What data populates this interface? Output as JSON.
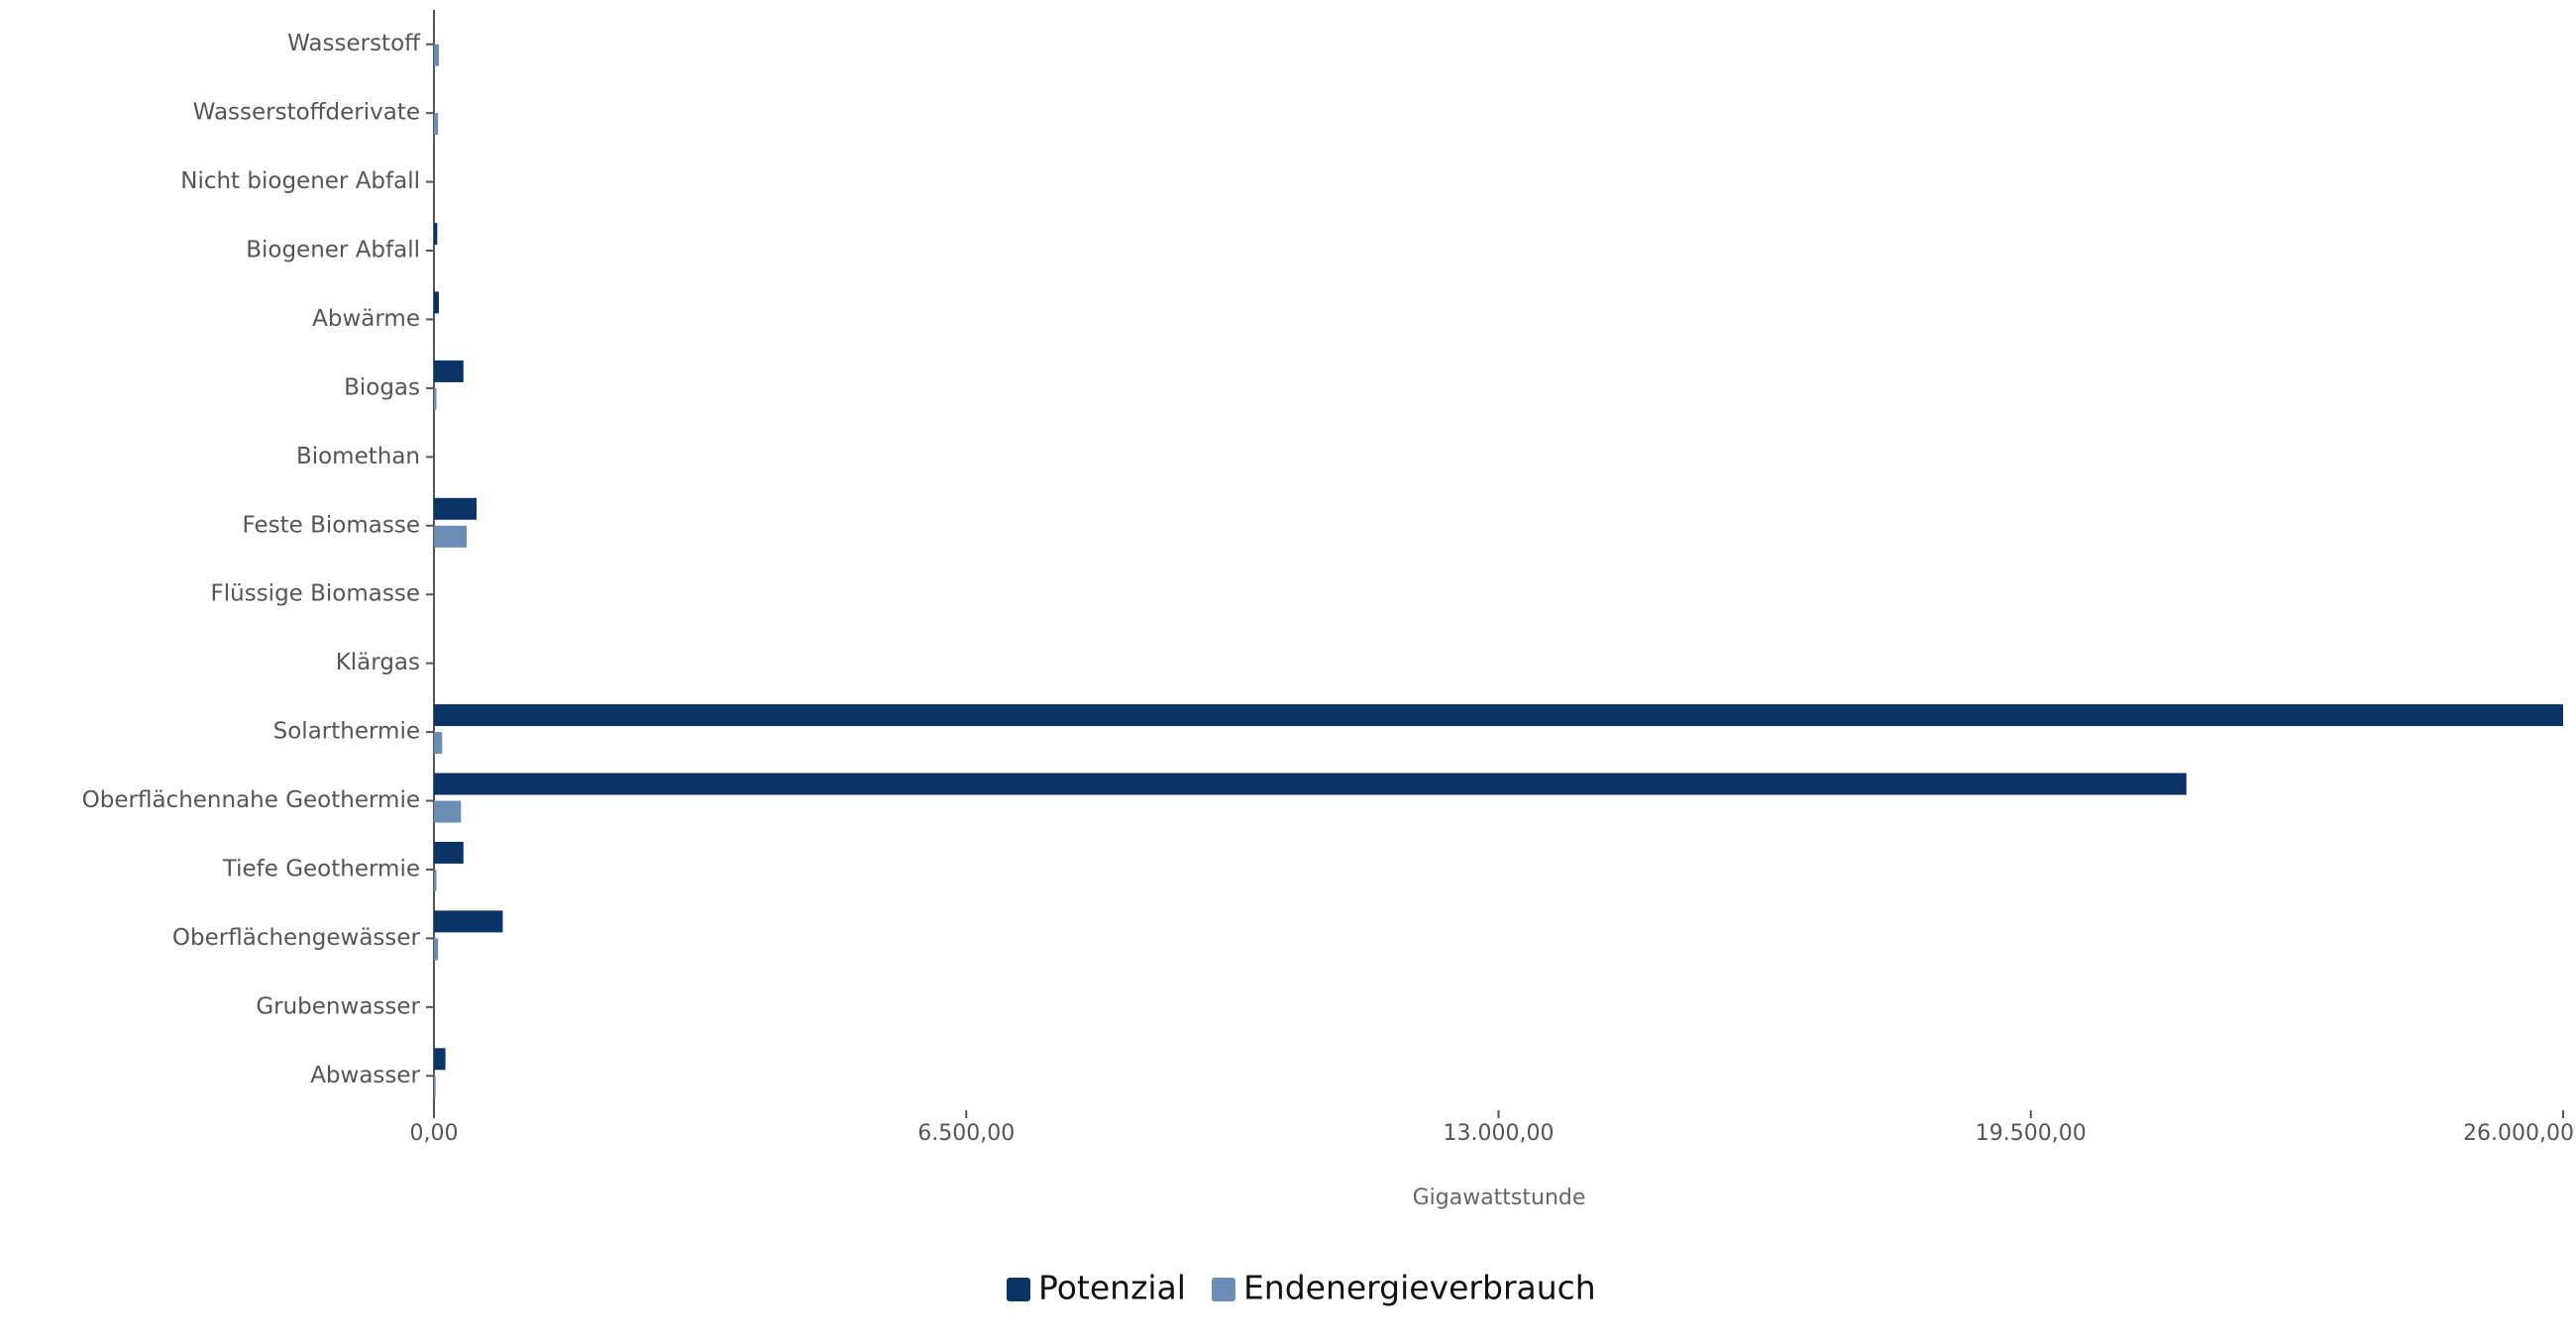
{
  "chart_data": {
    "type": "hbar",
    "categories": [
      "Wasserstoff",
      "Wasserstoffderivate",
      "Nicht biogener Abfall",
      "Biogener Abfall",
      "Abwärme",
      "Biogas",
      "Biomethan",
      "Feste Biomasse",
      "Flüssige Biomasse",
      "Klärgas",
      "Solarthermie",
      "Oberflächennahe Geothermie",
      "Tiefe Geothermie",
      "Oberflächengewässer",
      "Grubenwasser",
      "Abwasser"
    ],
    "series": [
      {
        "name": "Potenzial",
        "color": "#0b3466",
        "values": [
          0,
          0,
          0,
          40,
          60,
          360,
          0,
          520,
          0,
          0,
          26000,
          21400,
          360,
          840,
          0,
          140
        ]
      },
      {
        "name": "Endenergieverbrauch",
        "color": "#6b8db5",
        "values": [
          60,
          50,
          0,
          0,
          0,
          30,
          0,
          400,
          0,
          0,
          100,
          330,
          30,
          50,
          0,
          20
        ]
      }
    ],
    "x_label": "Gigawattstunde",
    "xlim": [
      0,
      26000
    ],
    "xticks": [
      {
        "value": 0,
        "label": "0,00"
      },
      {
        "value": 6500,
        "label": "6.500,00"
      },
      {
        "value": 13000,
        "label": "13.000,00"
      },
      {
        "value": 19500,
        "label": "19.500,00"
      },
      {
        "value": 26000,
        "label": "26.000,00"
      }
    ],
    "legend": "bottom"
  }
}
